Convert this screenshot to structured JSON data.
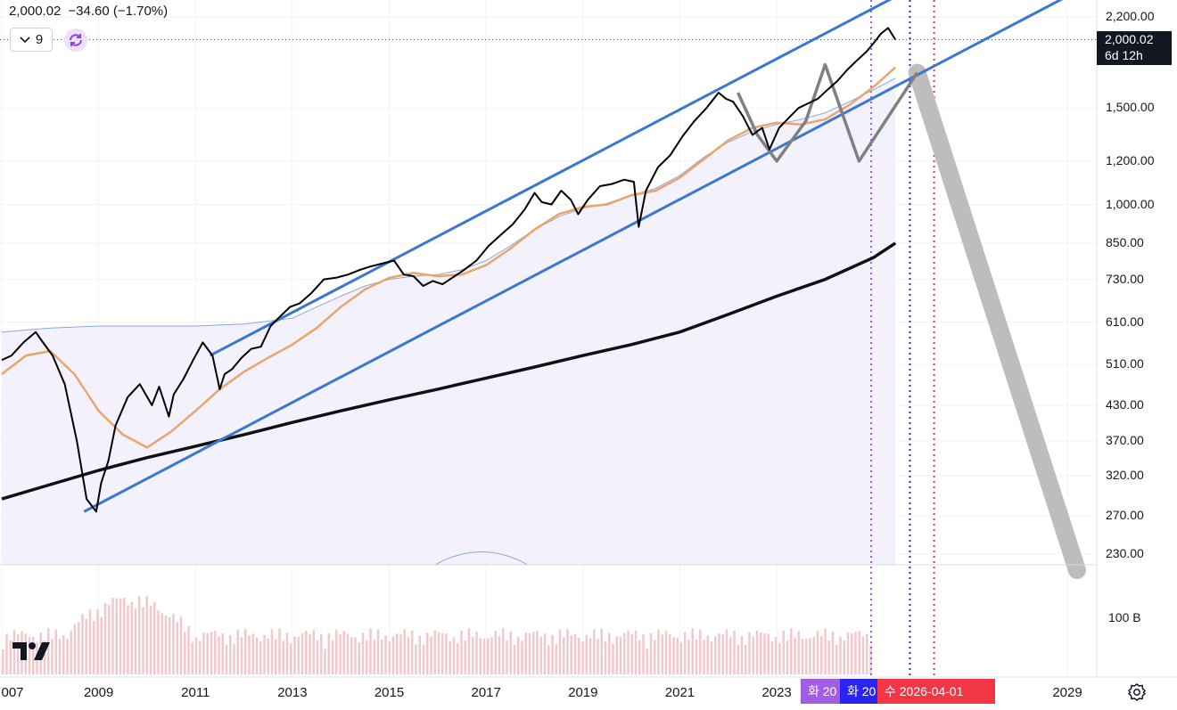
{
  "header": {
    "price": "2,000.02",
    "change": "−34.60 (−1.70%)",
    "collapse_count": "9"
  },
  "price_label": {
    "price": "2,000.02",
    "countdown": "6d 12h"
  },
  "volume_label": "100 B",
  "date_tags": [
    {
      "text": "화 20",
      "color": "#a25de3"
    },
    {
      "text": "화 20",
      "color": "#2b24ee"
    },
    {
      "text": "수 2026-04-01",
      "color": "#f23645"
    }
  ],
  "icons": {
    "collapse": "chevron-down-icon",
    "sync": "sync-icon",
    "logo": "tradingview-logo",
    "settings": "gear-icon"
  },
  "colors": {
    "price_line": "#000000",
    "channel": "#3a78d0",
    "ma_orange": "#e8a56c",
    "ma_blue": "#8aa8d8",
    "ma_long": "#111111",
    "projection": "#808080",
    "projection_fill": "#bdbdbd",
    "band_fill": "#f3f1fc",
    "volume": "#f2c8cc"
  },
  "chart_data": {
    "type": "line",
    "yscale": "log",
    "ylim": [
      210,
      2350
    ],
    "xlim": [
      2007.0,
      2030.5
    ],
    "y_ticks": [
      "2,200.00",
      "1,500.00",
      "1,200.00",
      "1,000.00",
      "850.00",
      "730.00",
      "610.00",
      "510.00",
      "430.00",
      "370.00",
      "320.00",
      "270.00",
      "230.00"
    ],
    "y_tick_values": [
      2200,
      1500,
      1200,
      1000,
      850,
      730,
      610,
      510,
      430,
      370,
      320,
      270,
      230
    ],
    "x_ticks": [
      "007",
      "2009",
      "2011",
      "2013",
      "2015",
      "2017",
      "2019",
      "2021",
      "2023",
      "2029"
    ],
    "x_tick_values": [
      2007.0,
      2009.0,
      2011.0,
      2013.0,
      2015.0,
      2017.0,
      2019.0,
      2021.0,
      2023.0,
      2029.0
    ],
    "series": [
      {
        "key": "price",
        "x": [
          2007.0,
          2007.2,
          2007.45,
          2007.7,
          2007.85,
          2008.05,
          2008.3,
          2008.55,
          2008.75,
          2008.95,
          2009.05,
          2009.2,
          2009.35,
          2009.6,
          2009.85,
          2010.1,
          2010.25,
          2010.45,
          2010.55,
          2010.75,
          2010.95,
          2011.15,
          2011.35,
          2011.5,
          2011.6,
          2011.75,
          2011.95,
          2012.15,
          2012.35,
          2012.55,
          2012.75,
          2012.95,
          2013.15,
          2013.4,
          2013.65,
          2013.9,
          2014.15,
          2014.4,
          2014.6,
          2014.85,
          2015.1,
          2015.3,
          2015.5,
          2015.7,
          2015.9,
          2016.1,
          2016.3,
          2016.55,
          2016.8,
          2017.05,
          2017.3,
          2017.55,
          2017.8,
          2018.0,
          2018.15,
          2018.35,
          2018.55,
          2018.75,
          2018.9,
          2019.1,
          2019.35,
          2019.6,
          2019.85,
          2020.05,
          2020.15,
          2020.3,
          2020.55,
          2020.8,
          2021.05,
          2021.3,
          2021.55,
          2021.8,
          2021.95,
          2022.1,
          2022.3,
          2022.5,
          2022.7,
          2022.85,
          2023.05,
          2023.25,
          2023.45,
          2023.65,
          2023.85,
          2024.05,
          2024.25,
          2024.45,
          2024.65,
          2024.85,
          2025.0,
          2025.15,
          2025.3,
          2025.45
        ],
        "y": [
          520,
          530,
          560,
          585,
          560,
          530,
          470,
          370,
          290,
          275,
          310,
          340,
          395,
          445,
          470,
          430,
          465,
          410,
          450,
          480,
          520,
          560,
          530,
          460,
          490,
          500,
          525,
          545,
          550,
          600,
          625,
          650,
          660,
          690,
          730,
          735,
          745,
          760,
          770,
          780,
          790,
          745,
          740,
          710,
          725,
          715,
          735,
          760,
          790,
          840,
          880,
          920,
          980,
          1050,
          1010,
          1000,
          1060,
          1020,
          960,
          1020,
          1080,
          1090,
          1110,
          1100,
          910,
          1060,
          1170,
          1230,
          1330,
          1420,
          1500,
          1600,
          1560,
          1540,
          1450,
          1340,
          1380,
          1260,
          1380,
          1440,
          1500,
          1530,
          1560,
          1620,
          1680,
          1760,
          1830,
          1900,
          1970,
          2050,
          2100,
          2000
        ]
      },
      {
        "key": "ma_orange",
        "x": [
          2007.0,
          2007.5,
          2008.0,
          2008.5,
          2009.0,
          2009.5,
          2010.0,
          2010.5,
          2011.0,
          2011.5,
          2012.0,
          2012.5,
          2013.0,
          2013.5,
          2014.0,
          2014.5,
          2015.0,
          2015.5,
          2016.0,
          2016.5,
          2017.0,
          2017.5,
          2018.0,
          2018.5,
          2019.0,
          2019.5,
          2020.0,
          2020.5,
          2021.0,
          2021.5,
          2022.0,
          2022.5,
          2023.0,
          2023.5,
          2024.0,
          2024.5,
          2025.0,
          2025.45
        ],
        "y": [
          490,
          530,
          540,
          490,
          420,
          380,
          360,
          385,
          420,
          460,
          495,
          525,
          555,
          595,
          650,
          700,
          735,
          750,
          740,
          745,
          775,
          830,
          900,
          960,
          990,
          1000,
          1040,
          1060,
          1120,
          1210,
          1310,
          1380,
          1410,
          1400,
          1430,
          1520,
          1640,
          1780
        ]
      },
      {
        "key": "ma_blue",
        "x": [
          2007.0,
          2008.0,
          2009.0,
          2010.0,
          2011.0,
          2012.0,
          2013.0,
          2013.5,
          2014.0,
          2014.5,
          2015.0,
          2015.5,
          2016.0,
          2016.5,
          2017.0,
          2017.5,
          2018.0,
          2018.5,
          2019.0,
          2019.5,
          2020.0,
          2020.5,
          2021.0,
          2021.5,
          2022.0,
          2022.5,
          2023.0,
          2023.5,
          2024.0,
          2024.5,
          2025.0,
          2025.45
        ],
        "y": [
          585,
          595,
          600,
          600,
          600,
          605,
          620,
          650,
          680,
          710,
          730,
          740,
          745,
          760,
          790,
          840,
          900,
          950,
          985,
          1005,
          1040,
          1070,
          1130,
          1220,
          1300,
          1360,
          1400,
          1430,
          1470,
          1540,
          1620,
          1700
        ]
      },
      {
        "key": "ma_long",
        "x": [
          2007.0,
          2008.0,
          2009.0,
          2010.0,
          2011.0,
          2012.0,
          2013.0,
          2014.0,
          2015.0,
          2016.0,
          2017.0,
          2018.0,
          2019.0,
          2020.0,
          2021.0,
          2022.0,
          2023.0,
          2024.0,
          2025.0,
          2025.45
        ],
        "y": [
          290,
          308,
          327,
          345,
          362,
          380,
          400,
          420,
          440,
          460,
          482,
          505,
          530,
          555,
          585,
          630,
          680,
          730,
          800,
          850
        ]
      },
      {
        "key": "channel_upper",
        "x": [
          2011.3,
          2025.85
        ],
        "y": [
          530,
          2500
        ]
      },
      {
        "key": "channel_lower",
        "x": [
          2008.7,
          2029.0
        ],
        "y": [
          275,
          2400
        ]
      },
      {
        "key": "projection_zigzag",
        "x": [
          2022.2,
          2022.6,
          2023.0,
          2023.6,
          2024.0,
          2024.7,
          2025.9
        ],
        "y": [
          1600,
          1340,
          1200,
          1420,
          1800,
          1200,
          1740
        ]
      },
      {
        "key": "projection_crash",
        "x": [
          2025.9,
          2029.2
        ],
        "y": [
          1740,
          215
        ]
      }
    ],
    "vertical_lines": [
      {
        "x": 2024.95,
        "color": "#a25de3",
        "style": "dotted"
      },
      {
        "x": 2025.75,
        "color": "#2b24ee",
        "style": "dotted"
      },
      {
        "x": 2026.25,
        "color": "#f23645",
        "style": "dotted"
      }
    ],
    "horizontal_lines": [
      {
        "y": 2000.02,
        "color": "#555555",
        "style": "dotted"
      }
    ]
  }
}
